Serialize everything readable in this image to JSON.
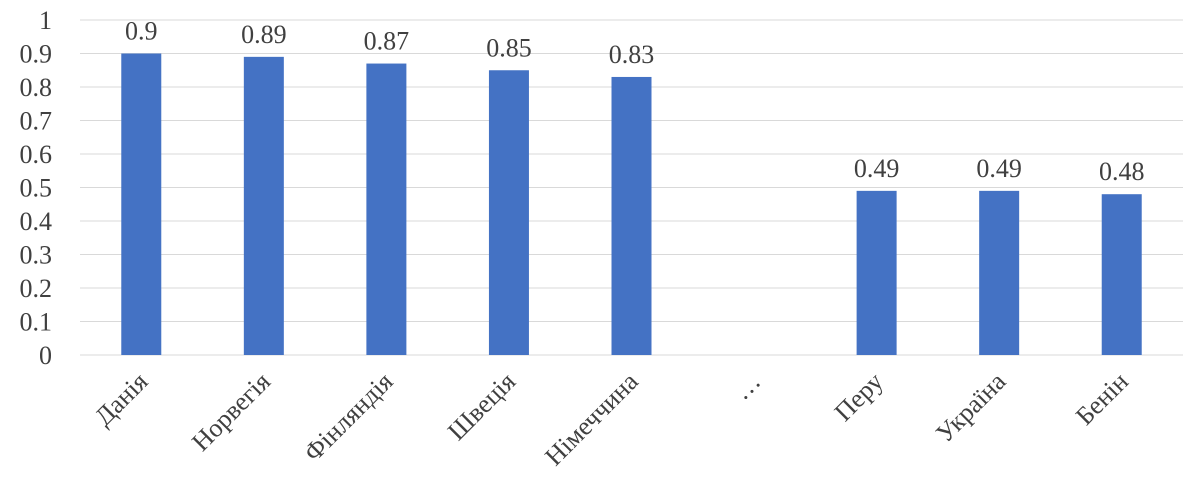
{
  "chart_data": {
    "type": "bar",
    "categories": [
      "Данія",
      "Норвегія",
      "Фінляндія",
      "Швеція",
      "Німеччина",
      "…",
      "Перу",
      "Україна",
      "Бенін"
    ],
    "values": [
      0.9,
      0.89,
      0.87,
      0.85,
      0.83,
      null,
      0.49,
      0.49,
      0.48
    ],
    "data_labels": [
      "0.9",
      "0.89",
      "0.87",
      "0.85",
      "0.83",
      "",
      "0.49",
      "0.49",
      "0.48"
    ],
    "y_ticks": [
      "0",
      "0.1",
      "0.2",
      "0.3",
      "0.4",
      "0.5",
      "0.6",
      "0.7",
      "0.8",
      "0.9",
      "1"
    ],
    "ylim": [
      0,
      1
    ],
    "grid": true,
    "legend": "none",
    "bar_color": "#4472c4",
    "title": "",
    "xlabel": "",
    "ylabel": ""
  }
}
